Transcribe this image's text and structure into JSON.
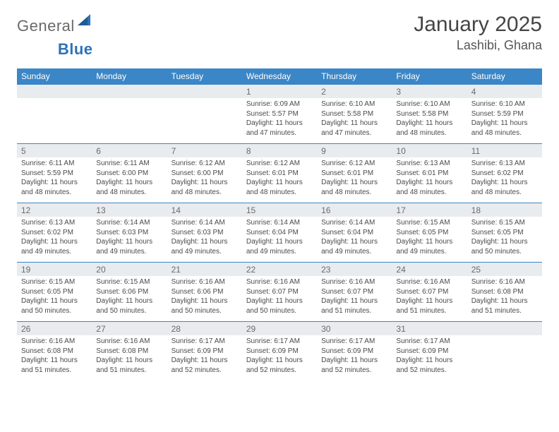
{
  "brand": {
    "part1": "General",
    "part2": "Blue"
  },
  "title": "January 2025",
  "location": "Lashibi, Ghana",
  "colors": {
    "header_bg": "#3b86c6",
    "header_fg": "#ffffff",
    "daynum_bg": "#e9ecef",
    "daynum_fg": "#6a6a6a",
    "body_fg": "#4a4a4a",
    "brand_blue": "#2d73b8",
    "brand_gray": "#6a6a6a",
    "rule": "#3b86c6"
  },
  "day_names": [
    "Sunday",
    "Monday",
    "Tuesday",
    "Wednesday",
    "Thursday",
    "Friday",
    "Saturday"
  ],
  "weeks": [
    [
      null,
      null,
      null,
      {
        "n": "1",
        "sr": "Sunrise: 6:09 AM",
        "ss": "Sunset: 5:57 PM",
        "d1": "Daylight: 11 hours",
        "d2": "and 47 minutes."
      },
      {
        "n": "2",
        "sr": "Sunrise: 6:10 AM",
        "ss": "Sunset: 5:58 PM",
        "d1": "Daylight: 11 hours",
        "d2": "and 47 minutes."
      },
      {
        "n": "3",
        "sr": "Sunrise: 6:10 AM",
        "ss": "Sunset: 5:58 PM",
        "d1": "Daylight: 11 hours",
        "d2": "and 48 minutes."
      },
      {
        "n": "4",
        "sr": "Sunrise: 6:10 AM",
        "ss": "Sunset: 5:59 PM",
        "d1": "Daylight: 11 hours",
        "d2": "and 48 minutes."
      }
    ],
    [
      {
        "n": "5",
        "sr": "Sunrise: 6:11 AM",
        "ss": "Sunset: 5:59 PM",
        "d1": "Daylight: 11 hours",
        "d2": "and 48 minutes."
      },
      {
        "n": "6",
        "sr": "Sunrise: 6:11 AM",
        "ss": "Sunset: 6:00 PM",
        "d1": "Daylight: 11 hours",
        "d2": "and 48 minutes."
      },
      {
        "n": "7",
        "sr": "Sunrise: 6:12 AM",
        "ss": "Sunset: 6:00 PM",
        "d1": "Daylight: 11 hours",
        "d2": "and 48 minutes."
      },
      {
        "n": "8",
        "sr": "Sunrise: 6:12 AM",
        "ss": "Sunset: 6:01 PM",
        "d1": "Daylight: 11 hours",
        "d2": "and 48 minutes."
      },
      {
        "n": "9",
        "sr": "Sunrise: 6:12 AM",
        "ss": "Sunset: 6:01 PM",
        "d1": "Daylight: 11 hours",
        "d2": "and 48 minutes."
      },
      {
        "n": "10",
        "sr": "Sunrise: 6:13 AM",
        "ss": "Sunset: 6:01 PM",
        "d1": "Daylight: 11 hours",
        "d2": "and 48 minutes."
      },
      {
        "n": "11",
        "sr": "Sunrise: 6:13 AM",
        "ss": "Sunset: 6:02 PM",
        "d1": "Daylight: 11 hours",
        "d2": "and 48 minutes."
      }
    ],
    [
      {
        "n": "12",
        "sr": "Sunrise: 6:13 AM",
        "ss": "Sunset: 6:02 PM",
        "d1": "Daylight: 11 hours",
        "d2": "and 49 minutes."
      },
      {
        "n": "13",
        "sr": "Sunrise: 6:14 AM",
        "ss": "Sunset: 6:03 PM",
        "d1": "Daylight: 11 hours",
        "d2": "and 49 minutes."
      },
      {
        "n": "14",
        "sr": "Sunrise: 6:14 AM",
        "ss": "Sunset: 6:03 PM",
        "d1": "Daylight: 11 hours",
        "d2": "and 49 minutes."
      },
      {
        "n": "15",
        "sr": "Sunrise: 6:14 AM",
        "ss": "Sunset: 6:04 PM",
        "d1": "Daylight: 11 hours",
        "d2": "and 49 minutes."
      },
      {
        "n": "16",
        "sr": "Sunrise: 6:14 AM",
        "ss": "Sunset: 6:04 PM",
        "d1": "Daylight: 11 hours",
        "d2": "and 49 minutes."
      },
      {
        "n": "17",
        "sr": "Sunrise: 6:15 AM",
        "ss": "Sunset: 6:05 PM",
        "d1": "Daylight: 11 hours",
        "d2": "and 49 minutes."
      },
      {
        "n": "18",
        "sr": "Sunrise: 6:15 AM",
        "ss": "Sunset: 6:05 PM",
        "d1": "Daylight: 11 hours",
        "d2": "and 50 minutes."
      }
    ],
    [
      {
        "n": "19",
        "sr": "Sunrise: 6:15 AM",
        "ss": "Sunset: 6:05 PM",
        "d1": "Daylight: 11 hours",
        "d2": "and 50 minutes."
      },
      {
        "n": "20",
        "sr": "Sunrise: 6:15 AM",
        "ss": "Sunset: 6:06 PM",
        "d1": "Daylight: 11 hours",
        "d2": "and 50 minutes."
      },
      {
        "n": "21",
        "sr": "Sunrise: 6:16 AM",
        "ss": "Sunset: 6:06 PM",
        "d1": "Daylight: 11 hours",
        "d2": "and 50 minutes."
      },
      {
        "n": "22",
        "sr": "Sunrise: 6:16 AM",
        "ss": "Sunset: 6:07 PM",
        "d1": "Daylight: 11 hours",
        "d2": "and 50 minutes."
      },
      {
        "n": "23",
        "sr": "Sunrise: 6:16 AM",
        "ss": "Sunset: 6:07 PM",
        "d1": "Daylight: 11 hours",
        "d2": "and 51 minutes."
      },
      {
        "n": "24",
        "sr": "Sunrise: 6:16 AM",
        "ss": "Sunset: 6:07 PM",
        "d1": "Daylight: 11 hours",
        "d2": "and 51 minutes."
      },
      {
        "n": "25",
        "sr": "Sunrise: 6:16 AM",
        "ss": "Sunset: 6:08 PM",
        "d1": "Daylight: 11 hours",
        "d2": "and 51 minutes."
      }
    ],
    [
      {
        "n": "26",
        "sr": "Sunrise: 6:16 AM",
        "ss": "Sunset: 6:08 PM",
        "d1": "Daylight: 11 hours",
        "d2": "and 51 minutes."
      },
      {
        "n": "27",
        "sr": "Sunrise: 6:16 AM",
        "ss": "Sunset: 6:08 PM",
        "d1": "Daylight: 11 hours",
        "d2": "and 51 minutes."
      },
      {
        "n": "28",
        "sr": "Sunrise: 6:17 AM",
        "ss": "Sunset: 6:09 PM",
        "d1": "Daylight: 11 hours",
        "d2": "and 52 minutes."
      },
      {
        "n": "29",
        "sr": "Sunrise: 6:17 AM",
        "ss": "Sunset: 6:09 PM",
        "d1": "Daylight: 11 hours",
        "d2": "and 52 minutes."
      },
      {
        "n": "30",
        "sr": "Sunrise: 6:17 AM",
        "ss": "Sunset: 6:09 PM",
        "d1": "Daylight: 11 hours",
        "d2": "and 52 minutes."
      },
      {
        "n": "31",
        "sr": "Sunrise: 6:17 AM",
        "ss": "Sunset: 6:09 PM",
        "d1": "Daylight: 11 hours",
        "d2": "and 52 minutes."
      },
      null
    ]
  ]
}
